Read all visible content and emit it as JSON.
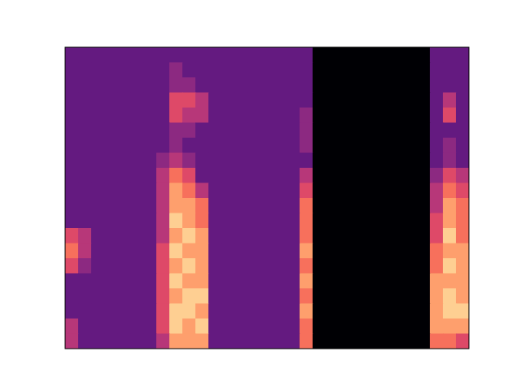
{
  "chart_data": {
    "type": "heatmap",
    "color": "magma",
    "zlim": [
      0,
      10
    ],
    "tick_labels": false,
    "cells": [
      [
        3,
        3,
        3,
        3,
        3,
        3,
        3,
        3,
        3,
        3,
        3,
        3,
        3,
        3,
        3,
        3,
        3,
        3,
        3,
        0,
        0,
        0,
        0,
        0,
        0,
        0,
        0,
        0,
        3,
        3,
        3
      ],
      [
        3,
        3,
        3,
        3,
        3,
        3,
        3,
        3,
        4,
        3,
        3,
        3,
        3,
        3,
        3,
        3,
        3,
        3,
        3,
        0,
        0,
        0,
        0,
        0,
        0,
        0,
        0,
        0,
        3,
        3,
        3
      ],
      [
        3,
        3,
        3,
        3,
        3,
        3,
        3,
        3,
        4,
        4,
        3,
        3,
        3,
        3,
        3,
        3,
        3,
        3,
        3,
        0,
        0,
        0,
        0,
        0,
        0,
        0,
        0,
        0,
        3,
        3,
        3
      ],
      [
        3,
        3,
        3,
        3,
        3,
        3,
        3,
        3,
        6,
        6,
        5,
        3,
        3,
        3,
        3,
        3,
        3,
        3,
        3,
        0,
        0,
        0,
        0,
        0,
        0,
        0,
        0,
        0,
        3,
        5,
        3
      ],
      [
        3,
        3,
        3,
        3,
        3,
        3,
        3,
        3,
        6,
        5,
        5,
        3,
        3,
        3,
        3,
        3,
        3,
        3,
        4,
        0,
        0,
        0,
        0,
        0,
        0,
        0,
        0,
        0,
        3,
        6,
        3
      ],
      [
        3,
        3,
        3,
        3,
        3,
        3,
        3,
        3,
        4,
        4,
        3,
        3,
        3,
        3,
        3,
        3,
        3,
        3,
        4,
        0,
        0,
        0,
        0,
        0,
        0,
        0,
        0,
        0,
        3,
        3,
        3
      ],
      [
        3,
        3,
        3,
        3,
        3,
        3,
        3,
        3,
        4,
        3,
        3,
        3,
        3,
        3,
        3,
        3,
        3,
        3,
        4,
        0,
        0,
        0,
        0,
        0,
        0,
        0,
        0,
        0,
        3,
        4,
        3
      ],
      [
        3,
        3,
        3,
        3,
        3,
        3,
        3,
        4,
        5,
        4,
        3,
        3,
        3,
        3,
        3,
        3,
        3,
        3,
        3,
        0,
        0,
        0,
        0,
        0,
        0,
        0,
        0,
        0,
        3,
        4,
        3
      ],
      [
        3,
        3,
        3,
        3,
        3,
        3,
        3,
        5,
        7,
        6,
        3,
        3,
        3,
        3,
        3,
        3,
        3,
        3,
        5,
        0,
        0,
        0,
        0,
        0,
        0,
        0,
        0,
        0,
        4,
        6,
        5
      ],
      [
        3,
        3,
        3,
        3,
        3,
        3,
        3,
        5,
        8,
        7,
        5,
        3,
        3,
        3,
        3,
        3,
        3,
        3,
        6,
        0,
        0,
        0,
        0,
        0,
        0,
        0,
        0,
        0,
        5,
        7,
        6
      ],
      [
        3,
        3,
        3,
        3,
        3,
        3,
        3,
        5,
        8,
        8,
        7,
        3,
        3,
        3,
        3,
        3,
        3,
        3,
        7,
        0,
        0,
        0,
        0,
        0,
        0,
        0,
        0,
        0,
        5,
        8,
        7
      ],
      [
        3,
        3,
        3,
        3,
        3,
        3,
        3,
        5,
        9,
        8,
        7,
        3,
        3,
        3,
        3,
        3,
        3,
        3,
        7,
        0,
        0,
        0,
        0,
        0,
        0,
        0,
        0,
        0,
        6,
        8,
        7
      ],
      [
        6,
        5,
        3,
        3,
        3,
        3,
        3,
        5,
        8,
        9,
        8,
        3,
        3,
        3,
        3,
        3,
        3,
        3,
        7,
        0,
        0,
        0,
        0,
        0,
        0,
        0,
        0,
        0,
        6,
        9,
        7
      ],
      [
        7,
        5,
        3,
        3,
        3,
        3,
        3,
        6,
        9,
        8,
        8,
        3,
        3,
        3,
        3,
        3,
        3,
        3,
        8,
        0,
        0,
        0,
        0,
        0,
        0,
        0,
        0,
        0,
        7,
        8,
        8
      ],
      [
        6,
        4,
        3,
        3,
        3,
        3,
        3,
        6,
        8,
        9,
        8,
        3,
        3,
        3,
        3,
        3,
        3,
        3,
        7,
        0,
        0,
        0,
        0,
        0,
        0,
        0,
        0,
        0,
        7,
        9,
        8
      ],
      [
        3,
        3,
        3,
        3,
        3,
        3,
        3,
        6,
        9,
        8,
        8,
        3,
        3,
        3,
        3,
        3,
        3,
        3,
        8,
        0,
        0,
        0,
        0,
        0,
        0,
        0,
        0,
        0,
        8,
        8,
        8
      ],
      [
        3,
        3,
        3,
        3,
        3,
        3,
        3,
        6,
        8,
        9,
        9,
        3,
        3,
        3,
        3,
        3,
        3,
        3,
        7,
        0,
        0,
        0,
        0,
        0,
        0,
        0,
        0,
        0,
        8,
        9,
        8
      ],
      [
        3,
        3,
        3,
        3,
        3,
        3,
        3,
        6,
        9,
        9,
        8,
        3,
        3,
        3,
        3,
        3,
        3,
        3,
        8,
        0,
        0,
        0,
        0,
        0,
        0,
        0,
        0,
        0,
        8,
        9,
        9
      ],
      [
        5,
        3,
        3,
        3,
        3,
        3,
        3,
        6,
        9,
        8,
        9,
        3,
        3,
        3,
        3,
        3,
        3,
        3,
        7,
        0,
        0,
        0,
        0,
        0,
        0,
        0,
        0,
        0,
        8,
        8,
        8
      ],
      [
        5,
        3,
        3,
        3,
        3,
        3,
        3,
        5,
        8,
        8,
        8,
        3,
        3,
        3,
        3,
        3,
        3,
        3,
        7,
        0,
        0,
        0,
        0,
        0,
        0,
        0,
        0,
        0,
        7,
        7,
        6
      ]
    ]
  }
}
